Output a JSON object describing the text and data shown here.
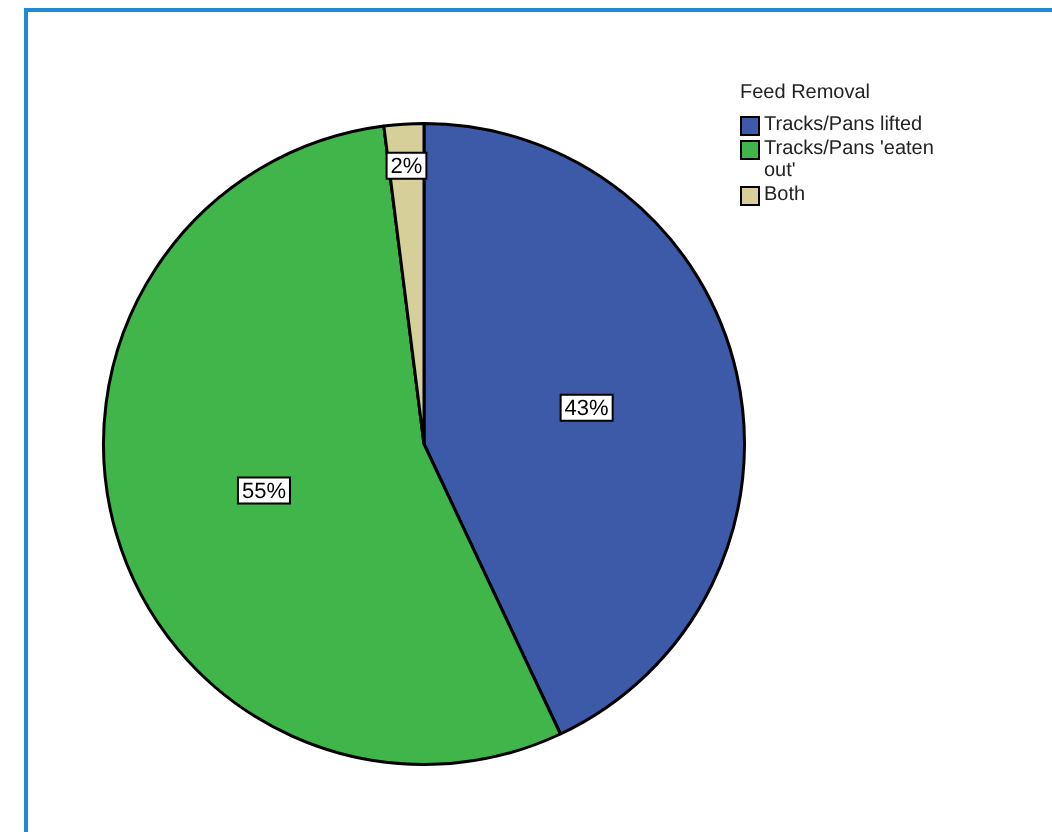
{
  "chart_data": {
    "type": "pie",
    "legend_title": "Feed Removal",
    "categories": [
      "Tracks/Pans lifted",
      "Tracks/Pans 'eaten out'",
      "Both"
    ],
    "values": [
      43,
      55,
      2
    ],
    "colors": [
      "#3d5aa8",
      "#3fb54a",
      "#d6cf9a"
    ],
    "value_labels": [
      "43%",
      "55%",
      "2%"
    ],
    "legend": "top right"
  }
}
